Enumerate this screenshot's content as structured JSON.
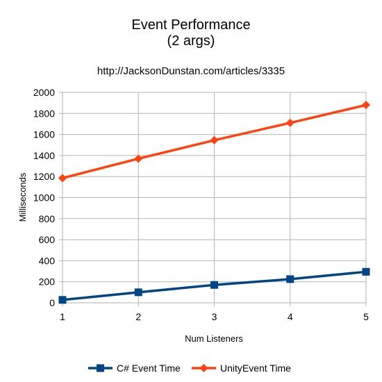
{
  "chart_data": {
    "type": "line",
    "title_lines": [
      "Event Performance",
      "(2 args)"
    ],
    "subtitle": "http://JacksonDunstan.com/articles/3335",
    "xlabel": "Num Listeners",
    "ylabel": "Milliseconds",
    "x": [
      1,
      2,
      3,
      4,
      5
    ],
    "ylim": [
      0,
      2000
    ],
    "yticks": [
      0,
      200,
      400,
      600,
      800,
      1000,
      1200,
      1400,
      1600,
      1800,
      2000
    ],
    "grid": true,
    "legend_position": "bottom",
    "series": [
      {
        "name": "C# Event Time",
        "color": "#004586",
        "marker": "square",
        "values": [
          28,
          100,
          170,
          225,
          295
        ]
      },
      {
        "name": "UnityEvent Time",
        "color": "#ff420e",
        "marker": "diamond",
        "values": [
          1185,
          1370,
          1545,
          1710,
          1880
        ]
      }
    ]
  }
}
